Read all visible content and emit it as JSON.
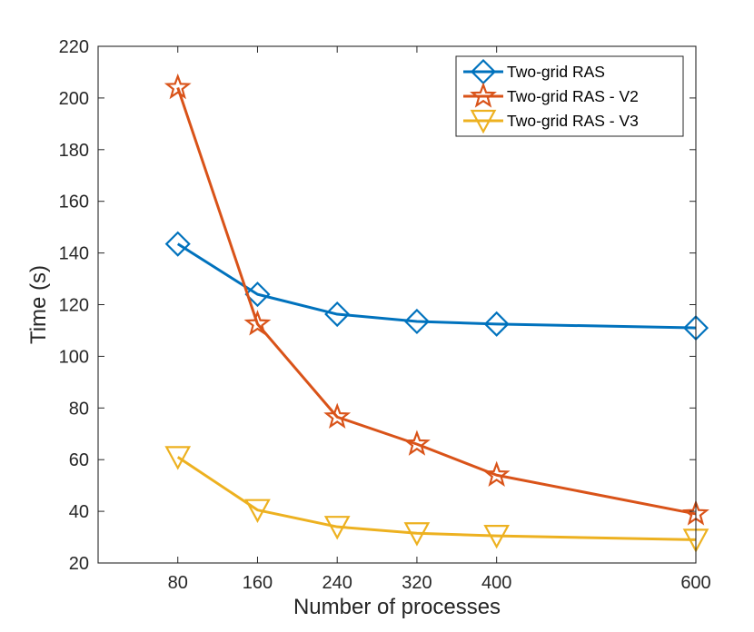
{
  "chart_data": {
    "type": "line",
    "title": "",
    "xlabel": "Number of processes",
    "ylabel": "Time (s)",
    "x": [
      80,
      160,
      240,
      320,
      400,
      600
    ],
    "xticks": [
      "80",
      "160",
      "240",
      "320",
      "400",
      "600"
    ],
    "xlim": [
      0,
      600
    ],
    "ylim": [
      20,
      220
    ],
    "yticks": [
      "20",
      "40",
      "60",
      "80",
      "100",
      "120",
      "140",
      "160",
      "180",
      "200",
      "220"
    ],
    "grid": false,
    "legend_position": "top-right",
    "series": [
      {
        "name": "Two-grid RAS",
        "color": "#0072BD",
        "marker": "diamond",
        "values": [
          143.5,
          124,
          116.3,
          113.5,
          112.5,
          111
        ]
      },
      {
        "name": "Two-grid RAS - V2",
        "color": "#D95319",
        "marker": "star",
        "values": [
          204,
          112.5,
          76.5,
          66,
          54,
          39
        ]
      },
      {
        "name": "Two-grid RAS - V3",
        "color": "#EDB120",
        "marker": "triangle-down",
        "values": [
          61,
          40.5,
          34,
          31.5,
          30.5,
          29
        ]
      }
    ]
  }
}
